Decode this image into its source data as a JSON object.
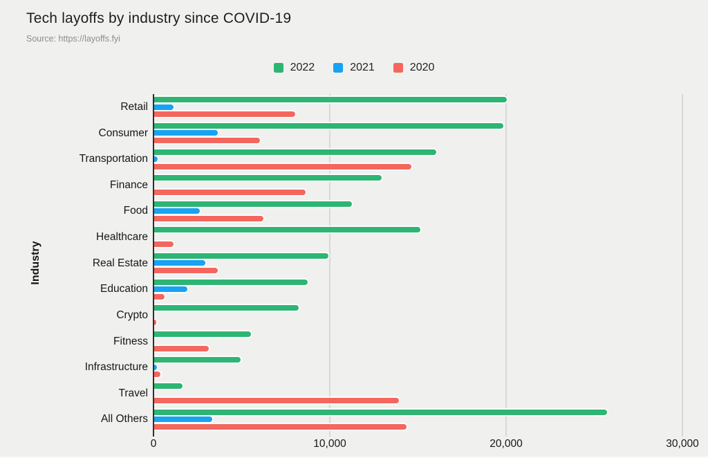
{
  "title": "Tech layoffs by industry since COVID-19",
  "source": "Source: https://layoffs.fyi",
  "colors": {
    "background": "#f0f1ef",
    "gridline": "#d8d8d6",
    "axis": "#2e2e2e",
    "series_2022": "#2eb573",
    "series_2021": "#18a2f2",
    "series_2020": "#f4675e",
    "text": "#1d1d1d",
    "source_text": "#8d8d8b"
  },
  "legend": [
    {
      "label": "2022",
      "color": "#2eb573"
    },
    {
      "label": "2021",
      "color": "#18a2f2"
    },
    {
      "label": "2020",
      "color": "#f4675e"
    }
  ],
  "chart_data": {
    "type": "bar",
    "orientation": "horizontal",
    "title": "Tech layoffs by industry since COVID-19",
    "subtitle": "Source: https://layoffs.fyi",
    "xlabel": "",
    "ylabel": "Industry",
    "xlim": [
      0,
      30000
    ],
    "grid": "vertical",
    "legend_position": "top-center",
    "categories": [
      "Retail",
      "Consumer",
      "Transportation",
      "Finance",
      "Food",
      "Healthcare",
      "Real Estate",
      "Education",
      "Crypto",
      "Fitness",
      "Infrastructure",
      "Travel",
      "All Others"
    ],
    "series": [
      {
        "name": "2022",
        "color": "#2eb573",
        "values": [
          20000,
          19800,
          16000,
          12900,
          11200,
          15100,
          9900,
          8700,
          8200,
          5500,
          4900,
          1600,
          25700
        ]
      },
      {
        "name": "2021",
        "color": "#18a2f2",
        "values": [
          1100,
          3600,
          200,
          0,
          2600,
          0,
          2900,
          1900,
          0,
          0,
          150,
          0,
          3300
        ]
      },
      {
        "name": "2020",
        "color": "#f4675e",
        "values": [
          8000,
          6000,
          14600,
          8600,
          6200,
          1100,
          3600,
          600,
          100,
          3100,
          350,
          13900,
          14300
        ]
      }
    ],
    "x_ticks": [
      {
        "value": 0,
        "label": "0"
      },
      {
        "value": 10000,
        "label": "10,000"
      },
      {
        "value": 20000,
        "label": "20,000"
      },
      {
        "value": 30000,
        "label": "30,000"
      }
    ]
  }
}
